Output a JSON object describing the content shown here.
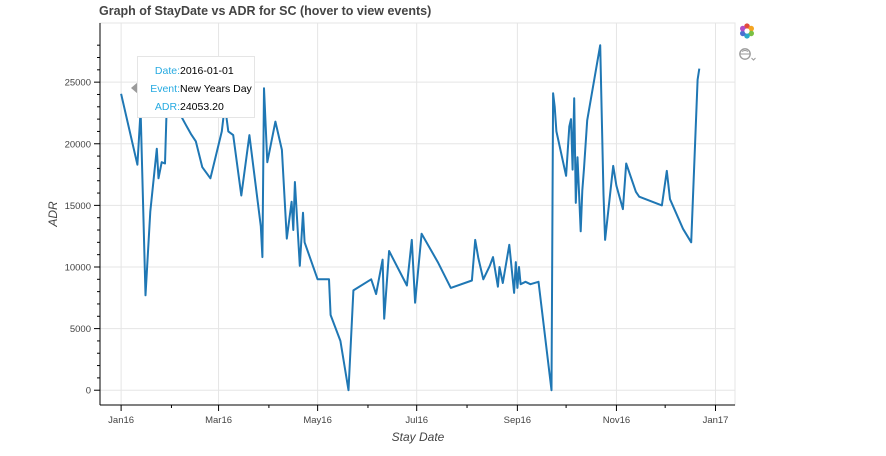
{
  "chart_data": {
    "type": "line",
    "title": "Graph of StayDate vs ADR for SC (hover to view events)",
    "xlabel": "Stay Date",
    "ylabel": "ADR",
    "x_tick_labels": [
      "Jan16",
      "Mar16",
      "May16",
      "Jul16",
      "Sep16",
      "Nov16",
      "Jan17"
    ],
    "x_tick_dates": [
      "2016-01-01",
      "2016-03-01",
      "2016-05-01",
      "2016-07-01",
      "2016-09-01",
      "2016-11-01",
      "2017-01-01"
    ],
    "y_ticks": [
      0,
      5000,
      10000,
      15000,
      20000,
      25000
    ],
    "xlim": [
      "2015-12-19",
      "2017-01-13"
    ],
    "ylim": [
      -1200,
      29800
    ],
    "grid": true,
    "line_color": "#1f77b4",
    "series": [
      {
        "x": [
          "2016-01-01",
          "2016-01-11",
          "2016-01-13",
          "2016-01-16",
          "2016-01-19",
          "2016-01-23",
          "2016-01-24",
          "2016-01-26",
          "2016-01-28",
          "2016-01-29",
          "2016-02-02",
          "2016-02-05",
          "2016-02-10",
          "2016-02-13",
          "2016-02-16",
          "2016-02-20",
          "2016-02-25",
          "2016-03-03",
          "2016-03-05",
          "2016-03-06",
          "2016-03-07",
          "2016-03-10",
          "2016-03-15",
          "2016-03-20",
          "2016-03-27",
          "2016-03-28",
          "2016-03-29",
          "2016-03-31",
          "2016-04-05",
          "2016-04-09",
          "2016-04-12",
          "2016-04-15",
          "2016-04-16",
          "2016-04-17",
          "2016-04-20",
          "2016-04-22",
          "2016-04-23",
          "2016-05-01",
          "2016-05-08",
          "2016-05-09",
          "2016-05-15",
          "2016-05-20",
          "2016-05-23",
          "2016-06-03",
          "2016-06-06",
          "2016-06-10",
          "2016-06-11",
          "2016-06-14",
          "2016-06-25",
          "2016-06-28",
          "2016-06-30",
          "2016-07-04",
          "2016-07-14",
          "2016-07-22",
          "2016-08-04",
          "2016-08-06",
          "2016-08-08",
          "2016-08-11",
          "2016-08-15",
          "2016-08-17",
          "2016-08-20",
          "2016-08-21",
          "2016-08-23",
          "2016-08-27",
          "2016-08-30",
          "2016-08-31",
          "2016-09-01",
          "2016-09-02",
          "2016-09-03",
          "2016-09-06",
          "2016-09-09",
          "2016-09-14",
          "2016-09-22",
          "2016-09-23",
          "2016-09-24",
          "2016-09-25",
          "2016-10-01",
          "2016-10-03",
          "2016-10-04",
          "2016-10-05",
          "2016-10-06",
          "2016-10-07",
          "2016-10-08",
          "2016-10-10",
          "2016-10-11",
          "2016-10-12",
          "2016-10-14",
          "2016-10-22",
          "2016-10-24",
          "2016-10-25",
          "2016-10-30",
          "2016-11-01",
          "2016-11-05",
          "2016-11-07",
          "2016-11-13",
          "2016-11-15",
          "2016-11-29",
          "2016-12-02",
          "2016-12-04",
          "2016-12-12",
          "2016-12-17",
          "2016-12-21",
          "2016-12-22"
        ],
        "y": [
          24053.2,
          18300,
          22700,
          7700,
          14500,
          19600,
          17200,
          18500,
          18400,
          22700,
          22600,
          22700,
          21500,
          20800,
          20200,
          18100,
          17200,
          21000,
          23300,
          22000,
          21000,
          20700,
          15800,
          20700,
          13300,
          10800,
          24500,
          18500,
          21800,
          19500,
          12300,
          15300,
          13000,
          16900,
          10100,
          14400,
          12000,
          9000,
          9000,
          6100,
          4000,
          0,
          8100,
          9000,
          7800,
          10600,
          5800,
          11300,
          8500,
          12200,
          7100,
          12700,
          10400,
          8300,
          8900,
          12200,
          10700,
          9000,
          10100,
          10800,
          8400,
          10000,
          8700,
          11800,
          7900,
          10400,
          8300,
          10000,
          8600,
          8800,
          8600,
          8800,
          0,
          24100,
          23000,
          21000,
          17400,
          21400,
          22000,
          17900,
          23700,
          15200,
          18900,
          12900,
          16200,
          18000,
          21900,
          28000,
          15900,
          12200,
          18200,
          16600,
          14700,
          18400,
          16100,
          15700,
          15000,
          17800,
          15500,
          13100,
          12000,
          25200,
          26100
        ]
      }
    ],
    "tooltip": {
      "rows": [
        {
          "key": "Date:",
          "value": "2016-01-01"
        },
        {
          "key": "Event:",
          "value": "New Years Day"
        },
        {
          "key": "ADR:",
          "value": "24053.20"
        }
      ]
    }
  },
  "toolbar": {
    "icons": [
      "bokeh-logo-icon",
      "hover-tool-icon"
    ]
  }
}
